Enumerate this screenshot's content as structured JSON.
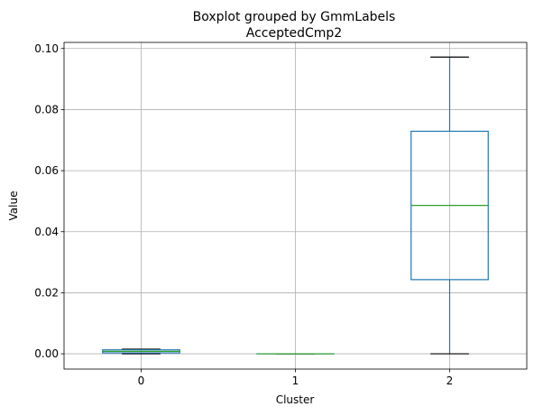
{
  "chart_data": {
    "type": "box",
    "suptitle": "Boxplot grouped by GmmLabels",
    "title": "AcceptedCmp2",
    "xlabel": "Cluster",
    "ylabel": "Value",
    "categories": [
      "0",
      "1",
      "2"
    ],
    "ylim": [
      -0.005,
      0.102
    ],
    "yticks": [
      0.0,
      0.02,
      0.04,
      0.06,
      0.08,
      0.1
    ],
    "ytick_labels": [
      "0.00",
      "0.02",
      "0.04",
      "0.06",
      "0.08",
      "0.10"
    ],
    "grid": true,
    "boxes": [
      {
        "category": "0",
        "whisker_low": 0.0,
        "q1": 0.0003,
        "median": 0.0008,
        "q3": 0.0013,
        "whisker_high": 0.0015
      },
      {
        "category": "1",
        "whisker_low": 0.0,
        "q1": 0.0,
        "median": 0.0,
        "q3": 0.0,
        "whisker_high": 0.0
      },
      {
        "category": "2",
        "whisker_low": 0.0,
        "q1": 0.0243,
        "median": 0.0486,
        "q3": 0.0729,
        "whisker_high": 0.0972
      }
    ],
    "colors": {
      "box": "#1f77b4",
      "median": "#2ca02c",
      "whisker_cap": "#000000",
      "grid": "#b0b0b0"
    }
  }
}
